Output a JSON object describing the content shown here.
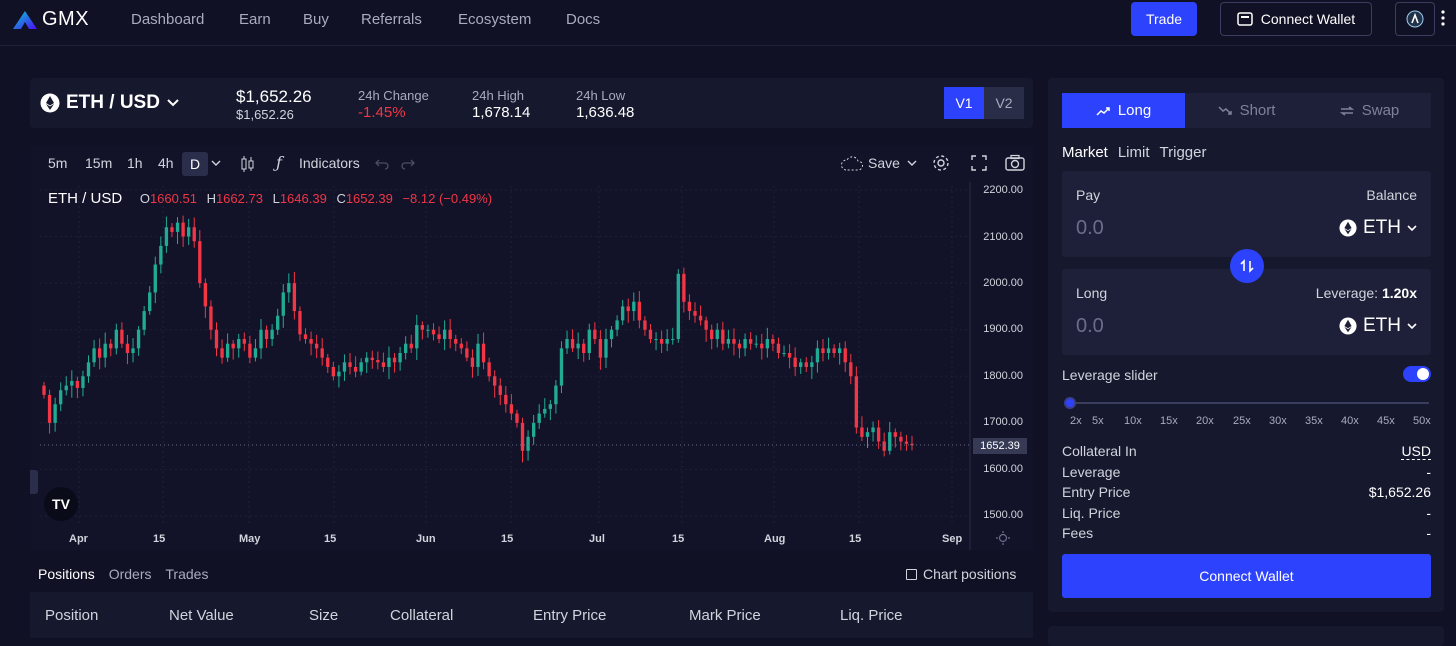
{
  "nav": {
    "logo_text": "GMX",
    "items": [
      "Dashboard",
      "Earn",
      "Buy",
      "Referrals",
      "Ecosystem",
      "Docs"
    ],
    "trade_label": "Trade",
    "connect_label": "Connect Wallet"
  },
  "market": {
    "pair": "ETH / USD",
    "price": "$1,652.26",
    "price_sub": "$1,652.26",
    "change_label": "24h Change",
    "change_value": "-1.45%",
    "high_label": "24h High",
    "high_value": "1,678.14",
    "low_label": "24h Low",
    "low_value": "1,636.48",
    "versions": [
      "V1",
      "V2"
    ]
  },
  "chart_toolbar": {
    "intervals": [
      "5m",
      "15m",
      "1h",
      "4h",
      "D"
    ],
    "indicators_label": "Indicators",
    "save_label": "Save"
  },
  "chart_data": {
    "type": "candlestick",
    "title": "ETH / USD",
    "ohlc_legend": {
      "O": "1660.51",
      "H": "1662.73",
      "L": "1646.39",
      "C": "1652.39",
      "change": "−8.12 (−0.49%)"
    },
    "x_tick_labels": [
      "Apr",
      "15",
      "May",
      "15",
      "Jun",
      "15",
      "Jul",
      "15",
      "Aug",
      "15",
      "Sep"
    ],
    "y_tick_labels": [
      "2200.00",
      "2100.00",
      "2000.00",
      "1900.00",
      "1800.00",
      "1700.00",
      "1600.00",
      "1500.00"
    ],
    "ylim": [
      1500,
      2200
    ],
    "last_price": "1652.39",
    "up_color": "#22ab94",
    "down_color": "#f23645",
    "closes": [
      1760,
      1700,
      1740,
      1770,
      1780,
      1790,
      1775,
      1800,
      1830,
      1860,
      1840,
      1870,
      1860,
      1900,
      1870,
      1850,
      1860,
      1900,
      1940,
      1980,
      2040,
      2080,
      2120,
      2110,
      2130,
      2100,
      2120,
      2090,
      2000,
      1950,
      1900,
      1860,
      1840,
      1870,
      1860,
      1880,
      1870,
      1840,
      1860,
      1900,
      1880,
      1900,
      1930,
      1980,
      2000,
      1940,
      1890,
      1880,
      1870,
      1860,
      1840,
      1820,
      1800,
      1810,
      1830,
      1820,
      1810,
      1830,
      1840,
      1835,
      1830,
      1820,
      1840,
      1830,
      1850,
      1870,
      1860,
      1910,
      1900,
      1900,
      1890,
      1880,
      1900,
      1880,
      1870,
      1860,
      1840,
      1820,
      1870,
      1830,
      1800,
      1780,
      1760,
      1740,
      1720,
      1700,
      1640,
      1670,
      1700,
      1720,
      1730,
      1740,
      1780,
      1860,
      1880,
      1860,
      1870,
      1850,
      1900,
      1880,
      1840,
      1880,
      1900,
      1920,
      1950,
      1940,
      1960,
      1920,
      1900,
      1880,
      1880,
      1870,
      1880,
      1880,
      2020,
      1960,
      1940,
      1930,
      1920,
      1900,
      1880,
      1900,
      1870,
      1880,
      1870,
      1860,
      1880,
      1870,
      1870,
      1860,
      1880,
      1870,
      1850,
      1850,
      1840,
      1820,
      1830,
      1820,
      1830,
      1860,
      1850,
      1860,
      1850,
      1860,
      1830,
      1800,
      1690,
      1670,
      1680,
      1690,
      1660,
      1640,
      1680,
      1670,
      1660,
      1655,
      1652
    ]
  },
  "positions": {
    "tabs": [
      "Positions",
      "Orders",
      "Trades"
    ],
    "chart_positions_label": "Chart positions",
    "columns": [
      "Position",
      "Net Value",
      "Size",
      "Collateral",
      "Entry Price",
      "Mark Price",
      "Liq. Price"
    ]
  },
  "panel": {
    "tabs": [
      "Long",
      "Short",
      "Swap"
    ],
    "order_types": [
      "Market",
      "Limit",
      "Trigger"
    ],
    "pay_label": "Pay",
    "balance_label": "Balance",
    "pay_amount": "0.0",
    "pay_token": "ETH",
    "long_label": "Long",
    "leverage_label": "Leverage:",
    "leverage_value": "1.20x",
    "long_amount": "0.0",
    "long_token": "ETH",
    "slider_label": "Leverage slider",
    "slider_marks": [
      "2x",
      "5x",
      "10x",
      "15x",
      "20x",
      "25x",
      "30x",
      "35x",
      "40x",
      "45x",
      "50x"
    ],
    "info": [
      {
        "label": "Collateral In",
        "value": "USD"
      },
      {
        "label": "Leverage",
        "value": "-"
      },
      {
        "label": "Entry Price",
        "value": "$1,652.26"
      },
      {
        "label": "Liq. Price",
        "value": "-"
      },
      {
        "label": "Fees",
        "value": "-"
      }
    ],
    "connect_label": "Connect Wallet"
  }
}
